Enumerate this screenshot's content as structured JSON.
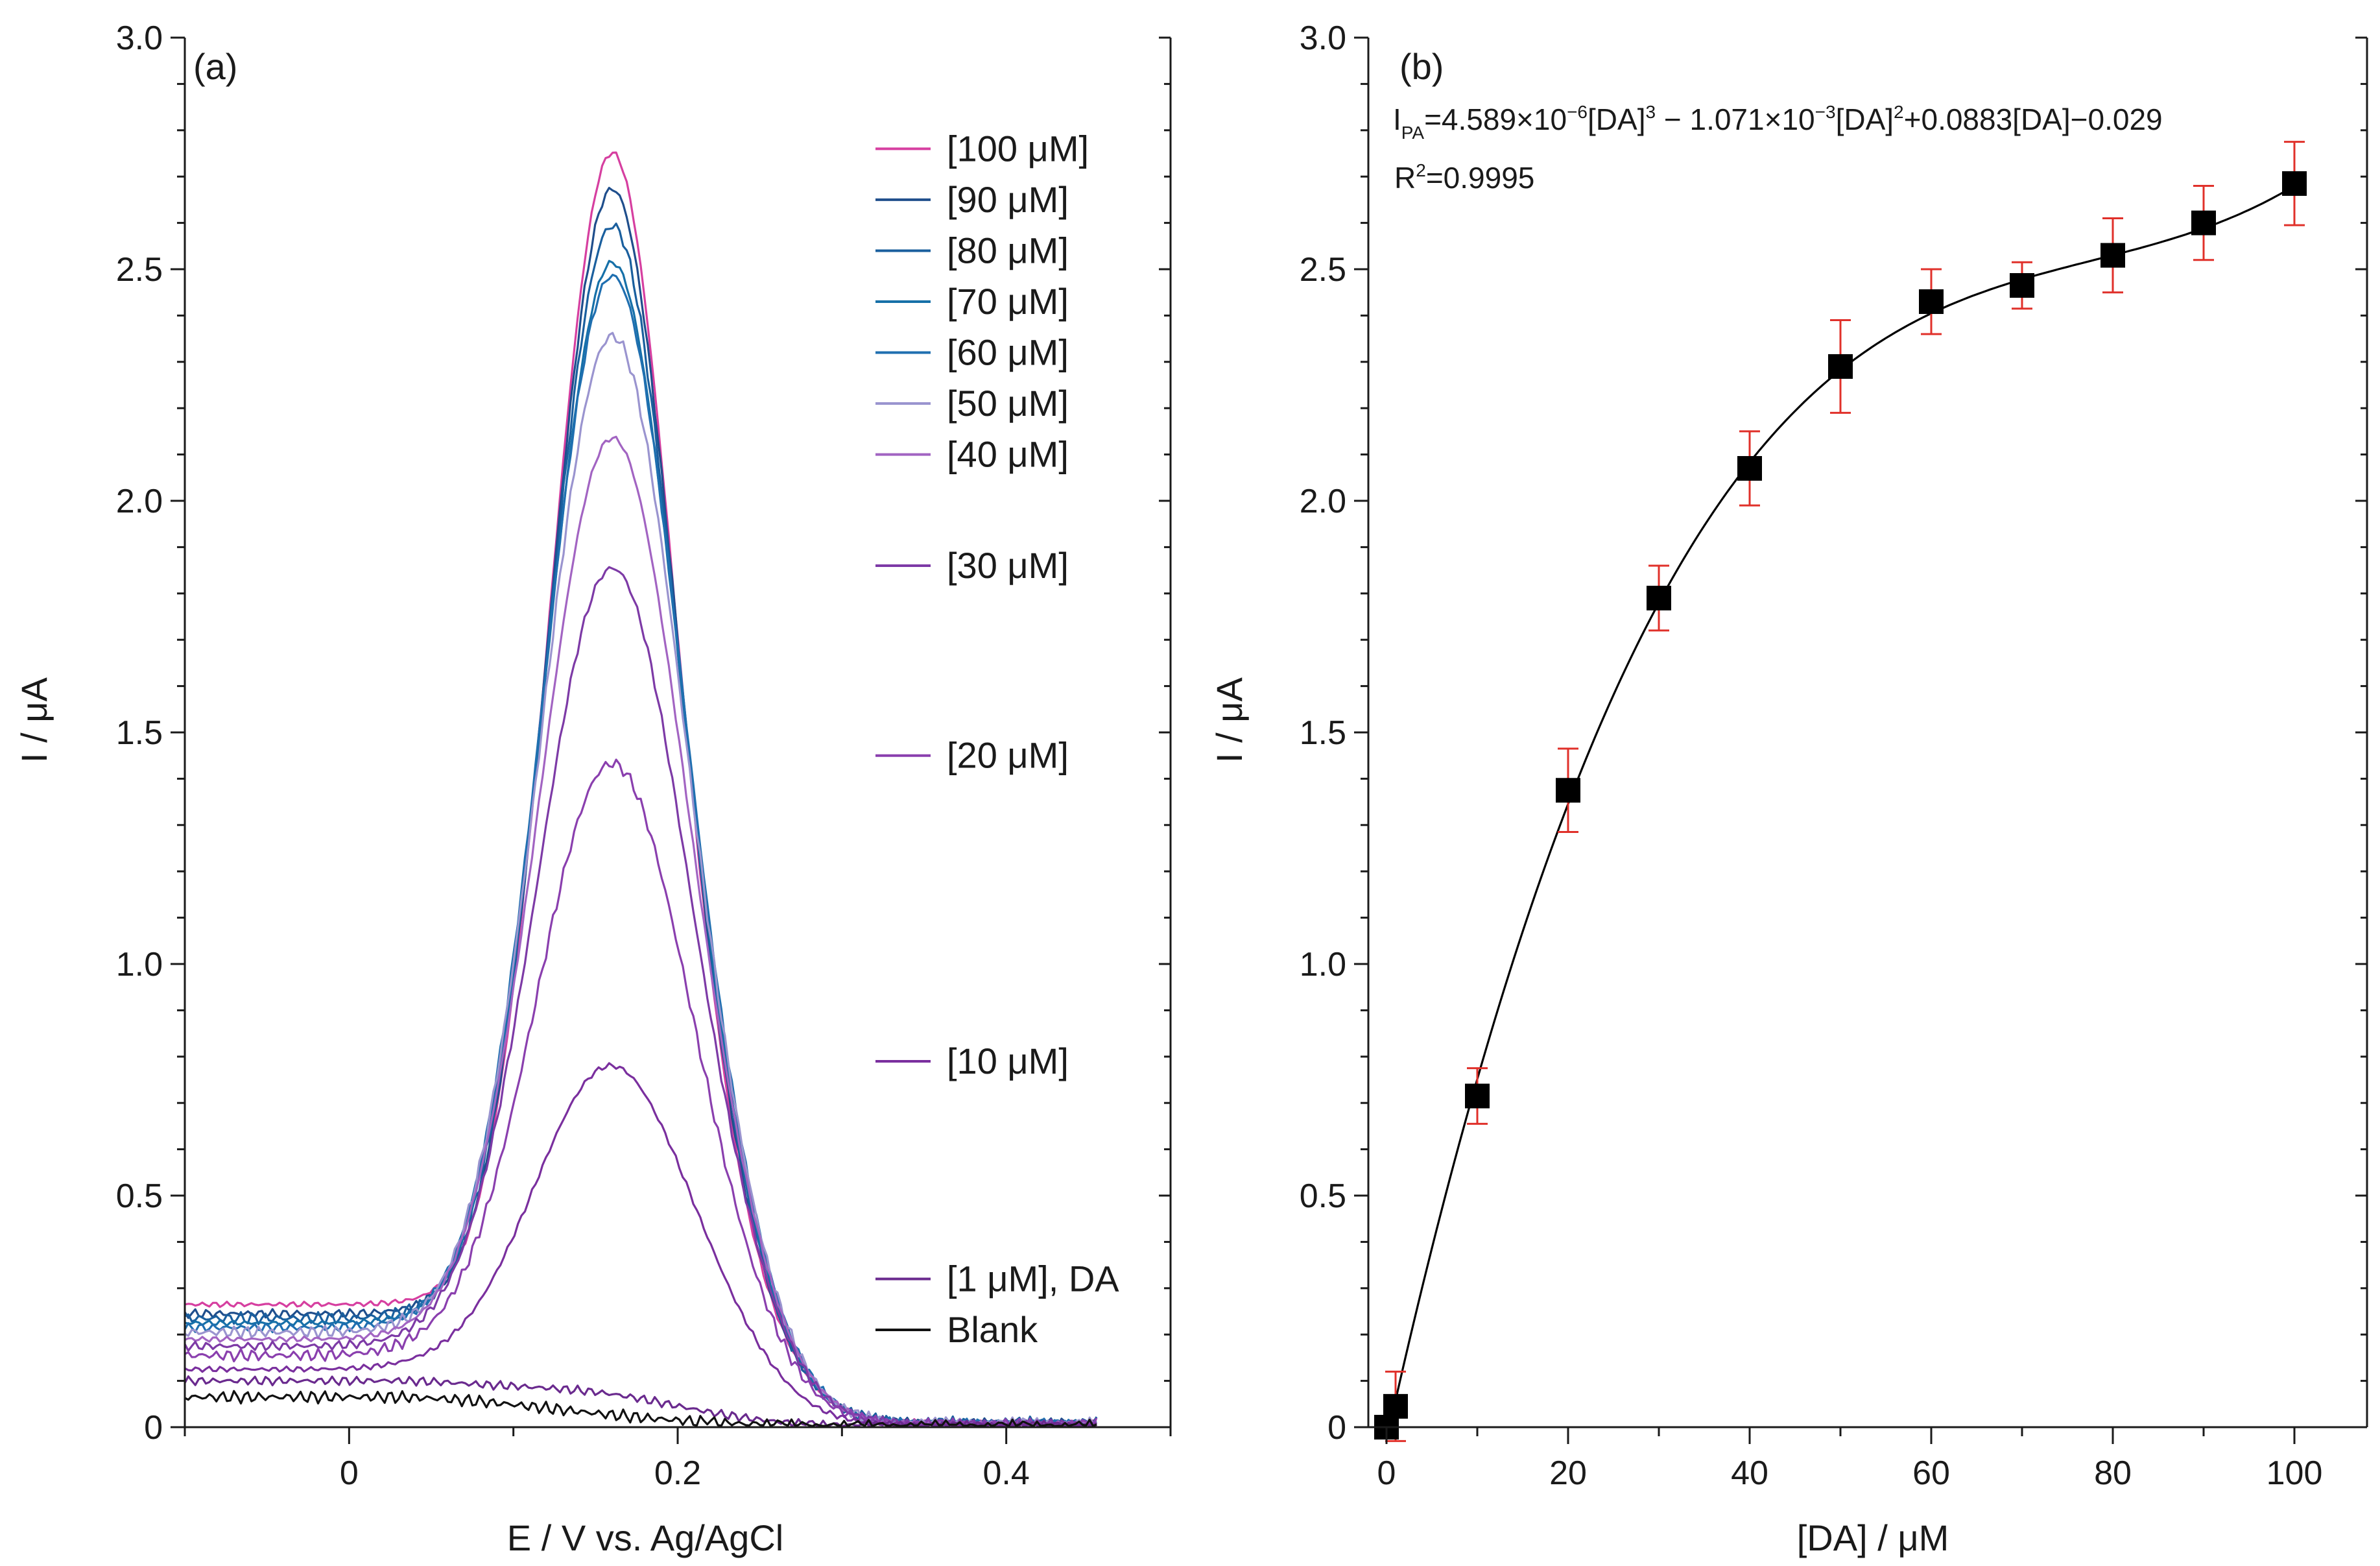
{
  "figure": {
    "background": "#ffffff"
  },
  "chart_data": [
    {
      "type": "line",
      "panel_label": "(a)",
      "xlabel": "E / V vs. Ag/AgCl",
      "ylabel": "I / μA",
      "xlim": [
        -0.1,
        0.5
      ],
      "ylim": [
        0,
        3.0
      ],
      "xticks": [
        0,
        0.2,
        0.4
      ],
      "xtick_labels": [
        "0",
        "0.2",
        "0.4"
      ],
      "xminor": [
        -0.1,
        0.1,
        0.3,
        0.5
      ],
      "yticks": [
        0,
        0.5,
        1.0,
        1.5,
        2.0,
        2.5,
        3.0
      ],
      "ytick_labels": [
        "0",
        "0.5",
        "1.0",
        "1.5",
        "2.0",
        "2.5",
        "3.0"
      ],
      "grid": false,
      "legend": "right",
      "peak_potential": 0.16,
      "x_range_plotted": [
        -0.1,
        0.455
      ],
      "series": [
        {
          "name": "[100 μM]",
          "color": "#d63fa0",
          "peak": 2.76,
          "baseline": 0.265,
          "legend_y": 2.76
        },
        {
          "name": "[90 μM]",
          "color": "#1f4e8c",
          "peak": 2.68,
          "baseline": 0.245,
          "legend_y": 2.65
        },
        {
          "name": "[80 μM]",
          "color": "#1a5f9e",
          "peak": 2.6,
          "baseline": 0.235,
          "legend_y": 2.54
        },
        {
          "name": "[70 μM]",
          "color": "#1670a8",
          "peak": 2.52,
          "baseline": 0.225,
          "legend_y": 2.43
        },
        {
          "name": "[60 μM]",
          "color": "#1f6fb0",
          "peak": 2.49,
          "baseline": 0.215,
          "legend_y": 2.32
        },
        {
          "name": "[50 μM]",
          "color": "#9a94cf",
          "peak": 2.36,
          "baseline": 0.205,
          "legend_y": 2.21
        },
        {
          "name": "[40 μM]",
          "color": "#a264c2",
          "peak": 2.14,
          "baseline": 0.19,
          "legend_y": 2.1
        },
        {
          "name": "[30 μM]",
          "color": "#7d3aa6",
          "peak": 1.86,
          "baseline": 0.175,
          "legend_y": 1.86
        },
        {
          "name": "[20 μM]",
          "color": "#8a3fae",
          "peak": 1.44,
          "baseline": 0.155,
          "legend_y": 1.45
        },
        {
          "name": "[10 μM]",
          "color": "#7a2f9e",
          "peak": 0.79,
          "baseline": 0.125,
          "legend_y": 0.79
        },
        {
          "name": "[1 μM], DA",
          "color": "#6a2a8e",
          "peak": 0.085,
          "baseline": 0.1,
          "legend_y": 0.32
        },
        {
          "name": "Blank",
          "color": "#111111",
          "peak": 0.0,
          "baseline": 0.065,
          "legend_y": 0.21
        }
      ]
    },
    {
      "type": "scatter",
      "panel_label": "(b)",
      "xlabel": "[DA] / μM",
      "ylabel": "I / μA",
      "xlim": [
        -2,
        108
      ],
      "ylim": [
        0,
        3.0
      ],
      "xticks": [
        0,
        20,
        40,
        60,
        80,
        100
      ],
      "xtick_labels": [
        "0",
        "20",
        "40",
        "60",
        "80",
        "100"
      ],
      "yticks": [
        0,
        0.5,
        1.0,
        1.5,
        2.0,
        2.5,
        3.0
      ],
      "ytick_labels": [
        "0",
        "0.5",
        "1.0",
        "1.5",
        "2.0",
        "2.5",
        "3.0"
      ],
      "grid": false,
      "x": [
        0,
        1,
        10,
        20,
        30,
        40,
        50,
        60,
        70,
        80,
        90,
        100
      ],
      "y": [
        0.0,
        0.045,
        0.715,
        1.375,
        1.79,
        2.07,
        2.29,
        2.43,
        2.465,
        2.53,
        2.6,
        2.685
      ],
      "error": [
        0.0,
        0.075,
        0.06,
        0.09,
        0.07,
        0.08,
        0.1,
        0.07,
        0.05,
        0.08,
        0.08,
        0.09
      ],
      "marker_color": "#000000",
      "error_color": "#e0302a",
      "fit": {
        "coefficients": [
          4.589e-06,
          -0.001071,
          0.0883,
          -0.029
        ],
        "color": "#000000",
        "x_range": [
          0,
          100
        ]
      },
      "equation": {
        "lhs": "I",
        "lhs_sub": "PA",
        "part1": "=4.589×10",
        "exp1": "−6",
        "part2": "[DA]",
        "pow3": "3",
        "part3": " − 1.071×10",
        "exp2": "−3",
        "part4": "[DA]",
        "pow2": "2",
        "part5": "+0.0883[DA]−0.029"
      },
      "r2": {
        "lhs": "R",
        "sup": "2",
        "rhs": "=0.9995"
      }
    }
  ]
}
